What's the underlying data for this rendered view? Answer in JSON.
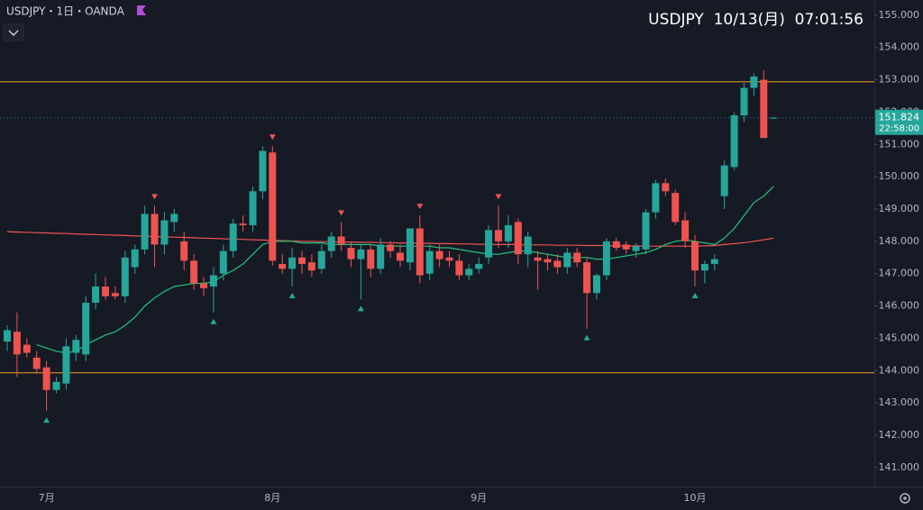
{
  "chart_data": {
    "type": "candlestick",
    "title": "USDJPY・1日・OANDA",
    "status": "USDJPY  10/13(月)  07:01:56",
    "countdown": "22:58:00",
    "last_price": 151.824,
    "up_color": "#26a69a",
    "down_color": "#ef5350",
    "ylim": [
      140.41,
      155.47
    ],
    "yticks": [
      {
        "value": 141,
        "label": "141.000"
      },
      {
        "value": 142,
        "label": "142.000"
      },
      {
        "value": 143,
        "label": "143.000"
      },
      {
        "value": 144,
        "label": "144.000"
      },
      {
        "value": 145,
        "label": "145.000"
      },
      {
        "value": 146,
        "label": "146.000"
      },
      {
        "value": 147,
        "label": "147.000"
      },
      {
        "value": 148,
        "label": "148.000"
      },
      {
        "value": 149,
        "label": "149.000"
      },
      {
        "value": 150,
        "label": "150.000"
      },
      {
        "value": 151,
        "label": "151.000"
      },
      {
        "value": 152,
        "label": "152.000"
      },
      {
        "value": 153,
        "label": "153.000"
      },
      {
        "value": 154,
        "label": "154.000"
      },
      {
        "value": 155,
        "label": "155.000"
      }
    ],
    "categories": [
      null,
      null,
      null,
      null,
      "7月",
      null,
      null,
      null,
      null,
      null,
      null,
      null,
      null,
      null,
      null,
      null,
      null,
      null,
      null,
      null,
      null,
      null,
      null,
      null,
      null,
      null,
      null,
      "8月",
      null,
      null,
      null,
      null,
      null,
      null,
      null,
      null,
      null,
      null,
      null,
      null,
      null,
      null,
      null,
      null,
      null,
      null,
      null,
      null,
      "9月",
      null,
      null,
      null,
      null,
      null,
      null,
      null,
      null,
      null,
      null,
      null,
      null,
      null,
      null,
      null,
      null,
      null,
      null,
      null,
      null,
      null,
      "10月",
      null,
      null,
      null,
      null,
      null,
      null,
      null,
      null
    ],
    "open": [
      144.9,
      145.2,
      144.8,
      144.4,
      144.1,
      143.4,
      143.6,
      144.55,
      144.5,
      146.1,
      146.6,
      146.4,
      146.3,
      147.2,
      147.75,
      148.85,
      147.9,
      148.6,
      148.0,
      147.4,
      146.7,
      146.6,
      147.0,
      147.7,
      148.55,
      148.5,
      149.55,
      150.75,
      147.3,
      147.15,
      147.5,
      147.35,
      147.15,
      147.7,
      148.15,
      147.8,
      147.45,
      147.75,
      147.15,
      147.9,
      147.65,
      147.35,
      148.4,
      147.0,
      147.7,
      147.5,
      147.4,
      146.95,
      147.15,
      147.5,
      148.35,
      148.0,
      148.6,
      147.6,
      147.5,
      147.45,
      147.4,
      147.2,
      147.65,
      147.35,
      146.4,
      146.95,
      148.0,
      147.9,
      147.7,
      147.75,
      148.9,
      149.8,
      149.5,
      148.65,
      148.0,
      147.1,
      147.3,
      149.4,
      150.3,
      151.9,
      152.75,
      153.0,
      151.82
    ],
    "high": [
      145.4,
      145.8,
      145.0,
      144.6,
      144.3,
      143.8,
      145.0,
      145.1,
      146.3,
      147.0,
      146.9,
      146.6,
      147.7,
      147.9,
      149.1,
      149.1,
      148.9,
      149.0,
      148.3,
      147.6,
      146.9,
      147.2,
      147.9,
      148.7,
      148.8,
      149.7,
      150.95,
      150.95,
      147.6,
      147.8,
      147.7,
      147.6,
      147.9,
      148.3,
      148.6,
      148.0,
      147.9,
      147.9,
      148.1,
      148.0,
      147.9,
      148.4,
      148.8,
      147.9,
      147.9,
      147.7,
      147.6,
      147.3,
      147.5,
      148.5,
      149.1,
      148.8,
      148.7,
      148.3,
      147.7,
      147.6,
      147.6,
      147.8,
      147.8,
      147.5,
      147.0,
      148.1,
      148.1,
      148.0,
      147.95,
      149.0,
      149.9,
      149.95,
      149.6,
      148.9,
      148.2,
      147.4,
      147.6,
      150.5,
      152.0,
      152.9,
      153.2,
      153.3,
      151.85
    ],
    "low": [
      144.6,
      143.8,
      144.4,
      143.9,
      142.75,
      143.3,
      143.4,
      144.3,
      144.3,
      145.9,
      146.2,
      146.2,
      146.1,
      147.0,
      147.6,
      147.2,
      147.6,
      148.3,
      147.1,
      146.5,
      146.3,
      145.8,
      146.8,
      147.5,
      148.3,
      148.3,
      149.3,
      147.25,
      147.0,
      146.6,
      147.0,
      146.9,
      147.0,
      147.5,
      147.7,
      147.2,
      146.2,
      146.9,
      147.0,
      147.5,
      147.2,
      147.1,
      146.7,
      146.8,
      147.2,
      147.2,
      146.8,
      146.8,
      147.0,
      147.3,
      147.8,
      147.8,
      147.3,
      147.2,
      146.5,
      147.1,
      147.0,
      147.0,
      147.2,
      145.3,
      146.2,
      146.8,
      147.7,
      147.6,
      147.5,
      147.6,
      148.7,
      149.4,
      148.5,
      147.8,
      146.6,
      146.7,
      147.1,
      149.0,
      150.2,
      151.7,
      152.5,
      151.2,
      151.8
    ],
    "close": [
      145.25,
      144.5,
      144.55,
      144.05,
      143.4,
      143.65,
      144.75,
      144.95,
      146.1,
      146.6,
      146.3,
      146.3,
      147.5,
      147.75,
      148.85,
      147.9,
      148.65,
      148.85,
      147.4,
      146.7,
      146.55,
      146.95,
      147.7,
      148.55,
      148.5,
      149.55,
      150.8,
      147.4,
      147.15,
      147.5,
      147.3,
      147.1,
      147.7,
      148.15,
      147.9,
      147.45,
      147.75,
      147.15,
      147.9,
      147.7,
      147.4,
      148.4,
      146.95,
      147.7,
      147.45,
      147.4,
      146.95,
      147.15,
      147.3,
      148.35,
      148.0,
      148.5,
      147.6,
      148.15,
      147.4,
      147.35,
      147.2,
      147.65,
      147.35,
      146.4,
      146.95,
      148.0,
      147.8,
      147.75,
      147.85,
      148.9,
      149.8,
      149.55,
      148.6,
      148.0,
      147.1,
      147.3,
      147.45,
      150.35,
      151.9,
      152.75,
      153.1,
      151.2,
      151.824
    ],
    "ma_lines": [
      {
        "color": "#ef5350",
        "values": [
          148.3,
          148.29,
          148.28,
          148.27,
          148.26,
          148.25,
          148.24,
          148.23,
          148.22,
          148.21,
          148.2,
          148.19,
          148.18,
          148.17,
          148.16,
          148.15,
          148.14,
          148.13,
          148.12,
          148.11,
          148.1,
          148.09,
          148.08,
          148.07,
          148.06,
          148.05,
          148.04,
          148.03,
          148.02,
          148.01,
          148.0,
          148.0,
          147.99,
          147.99,
          147.98,
          147.98,
          147.97,
          147.97,
          147.96,
          147.96,
          147.95,
          147.95,
          147.94,
          147.94,
          147.93,
          147.93,
          147.92,
          147.92,
          147.91,
          147.91,
          147.9,
          147.9,
          147.9,
          147.89,
          147.89,
          147.89,
          147.88,
          147.88,
          147.88,
          147.87,
          147.87,
          147.87,
          147.86,
          147.86,
          147.86,
          147.85,
          147.85,
          147.85,
          147.85,
          147.85,
          147.85,
          147.86,
          147.87,
          147.9,
          147.93,
          147.96,
          148.0,
          148.05,
          148.1
        ]
      },
      {
        "color": "#22c37a",
        "values": [
          null,
          null,
          null,
          144.8,
          144.7,
          144.6,
          144.55,
          144.6,
          144.8,
          144.95,
          145.1,
          145.2,
          145.4,
          145.65,
          146.0,
          146.25,
          146.45,
          146.6,
          146.65,
          146.7,
          146.7,
          146.75,
          146.95,
          147.1,
          147.3,
          147.6,
          147.9,
          148.0,
          148.0,
          148.0,
          147.95,
          147.95,
          147.95,
          147.9,
          147.9,
          147.9,
          147.9,
          147.9,
          147.85,
          147.85,
          147.85,
          147.85,
          147.85,
          147.85,
          147.8,
          147.8,
          147.75,
          147.7,
          147.65,
          147.6,
          147.6,
          147.65,
          147.7,
          147.7,
          147.65,
          147.6,
          147.55,
          147.5,
          147.5,
          147.5,
          147.45,
          147.45,
          147.5,
          147.55,
          147.6,
          147.65,
          147.75,
          147.9,
          148.0,
          148.05,
          148.0,
          147.95,
          147.9,
          148.1,
          148.4,
          148.8,
          149.2,
          149.4,
          149.7
        ]
      }
    ],
    "hlines": [
      {
        "value": 152.94,
        "color": "#f0a020"
      },
      {
        "value": 143.93,
        "color": "#f0a020"
      }
    ],
    "fractal_highs": [
      15,
      27,
      34,
      42,
      50
    ],
    "fractal_lows": [
      4,
      21,
      29,
      36,
      59,
      70
    ]
  }
}
